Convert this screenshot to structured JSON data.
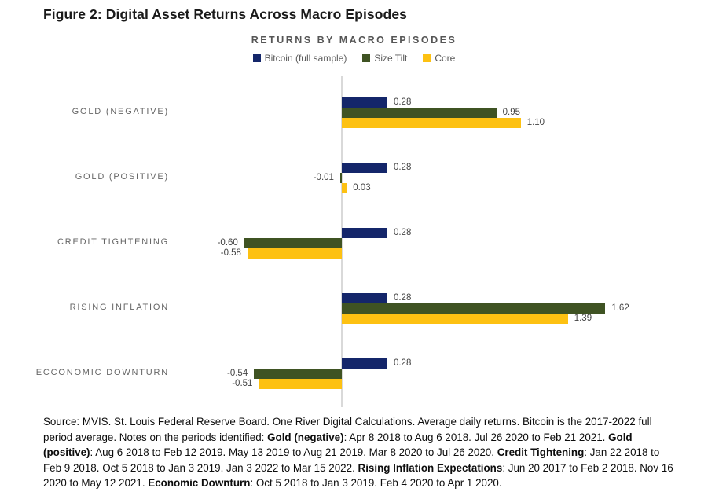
{
  "figure": {
    "title": "Figure 2: Digital Asset Returns Across Macro Episodes"
  },
  "chart_data": {
    "type": "bar",
    "orientation": "horizontal",
    "title": "RETURNS BY MACRO EPISODES",
    "categories": [
      "GOLD (NEGATIVE)",
      "GOLD (POSITIVE)",
      "CREDIT TIGHTENING",
      "RISING INFLATION",
      "ECCONOMIC DOWNTURN"
    ],
    "series": [
      {
        "name": "Bitcoin (full sample)",
        "color": "#14266a",
        "values": [
          0.28,
          0.28,
          0.28,
          0.28,
          0.28
        ]
      },
      {
        "name": "Size Tilt",
        "color": "#3f5323",
        "values": [
          0.95,
          -0.01,
          -0.6,
          1.62,
          -0.54
        ]
      },
      {
        "name": "Core",
        "color": "#fdc112",
        "values": [
          1.1,
          0.03,
          -0.58,
          1.39,
          -0.51
        ]
      }
    ],
    "value_label_format": "two_decimals",
    "xlim": [
      -0.8,
      2.0
    ],
    "grid": false,
    "legend_position": "top",
    "axis_color": "#d9d9d9"
  },
  "source": {
    "segments": [
      {
        "text": "Source: MVIS. St. Louis Federal Reserve Board. One River Digital Calculations. Average daily returns. Bitcoin is the 2017-2022 full period average. Notes on the periods identified: ",
        "bold": false
      },
      {
        "text": "Gold (negative)",
        "bold": true
      },
      {
        "text": ": Apr 8 2018 to Aug 6 2018. Jul 26 2020 to Feb 21 2021. ",
        "bold": false
      },
      {
        "text": "Gold (positive)",
        "bold": true
      },
      {
        "text": ": Aug 6 2018 to Feb 12 2019. May 13 2019 to Aug 21 2019. Mar 8 2020 to Jul 26 2020. ",
        "bold": false
      },
      {
        "text": "Credit Tightening",
        "bold": true
      },
      {
        "text": ": Jan 22 2018 to Feb 9 2018. Oct 5 2018 to Jan 3 2019. Jan 3 2022 to Mar 15 2022. ",
        "bold": false
      },
      {
        "text": "Rising Inflation Expectations",
        "bold": true
      },
      {
        "text": ": Jun 20 2017 to Feb 2 2018. Nov 16 2020 to May 12 2021. ",
        "bold": false
      },
      {
        "text": "Economic Downturn",
        "bold": true
      },
      {
        "text": ": Oct 5 2018 to Jan 3 2019. Feb 4 2020 to Apr 1 2020.",
        "bold": false
      }
    ]
  }
}
